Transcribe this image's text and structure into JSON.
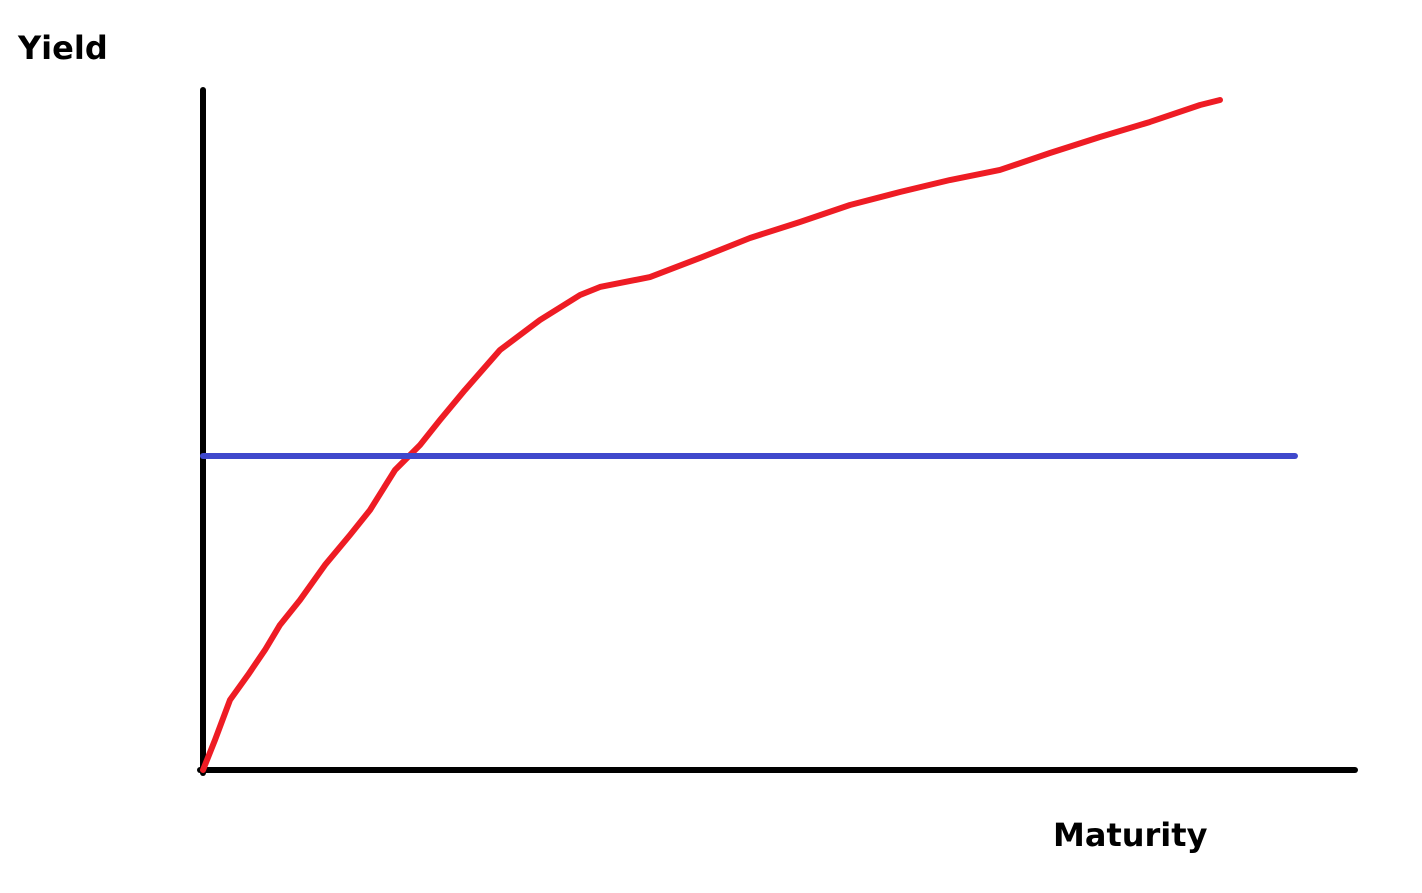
{
  "chart_data": {
    "type": "line",
    "ylabel": "Yield",
    "xlabel": "Maturity",
    "xlim": [
      0,
      100
    ],
    "ylim": [
      0,
      100
    ],
    "series": [
      {
        "color": "#ee1c24",
        "x": [
          0,
          1.04,
          2.34,
          3.9,
          5.38,
          6.68,
          8.42,
          10.59,
          12.76,
          14.5,
          16.67,
          18.84,
          20.57,
          22.74,
          25.78,
          29.25,
          32.73,
          34.46,
          38.8,
          43.14,
          47.48,
          51.82,
          56.16,
          60.5,
          64.84,
          69.18,
          73.52,
          77.86,
          82.2,
          86.55,
          88.28
        ],
        "values": [
          0,
          4.42,
          10.32,
          14.01,
          17.7,
          21.39,
          25.07,
          30.24,
          34.66,
          38.35,
          44.25,
          47.94,
          51.62,
          56.05,
          61.95,
          66.37,
          70.06,
          71.24,
          72.71,
          75.52,
          78.47,
          80.83,
          83.33,
          85.25,
          87.02,
          88.5,
          91.0,
          93.36,
          95.58,
          98.08,
          98.82
        ]
      },
      {
        "color": "#3f48cc",
        "x": [
          0,
          94.79
        ],
        "values": [
          46.31,
          46.31
        ]
      }
    ]
  }
}
